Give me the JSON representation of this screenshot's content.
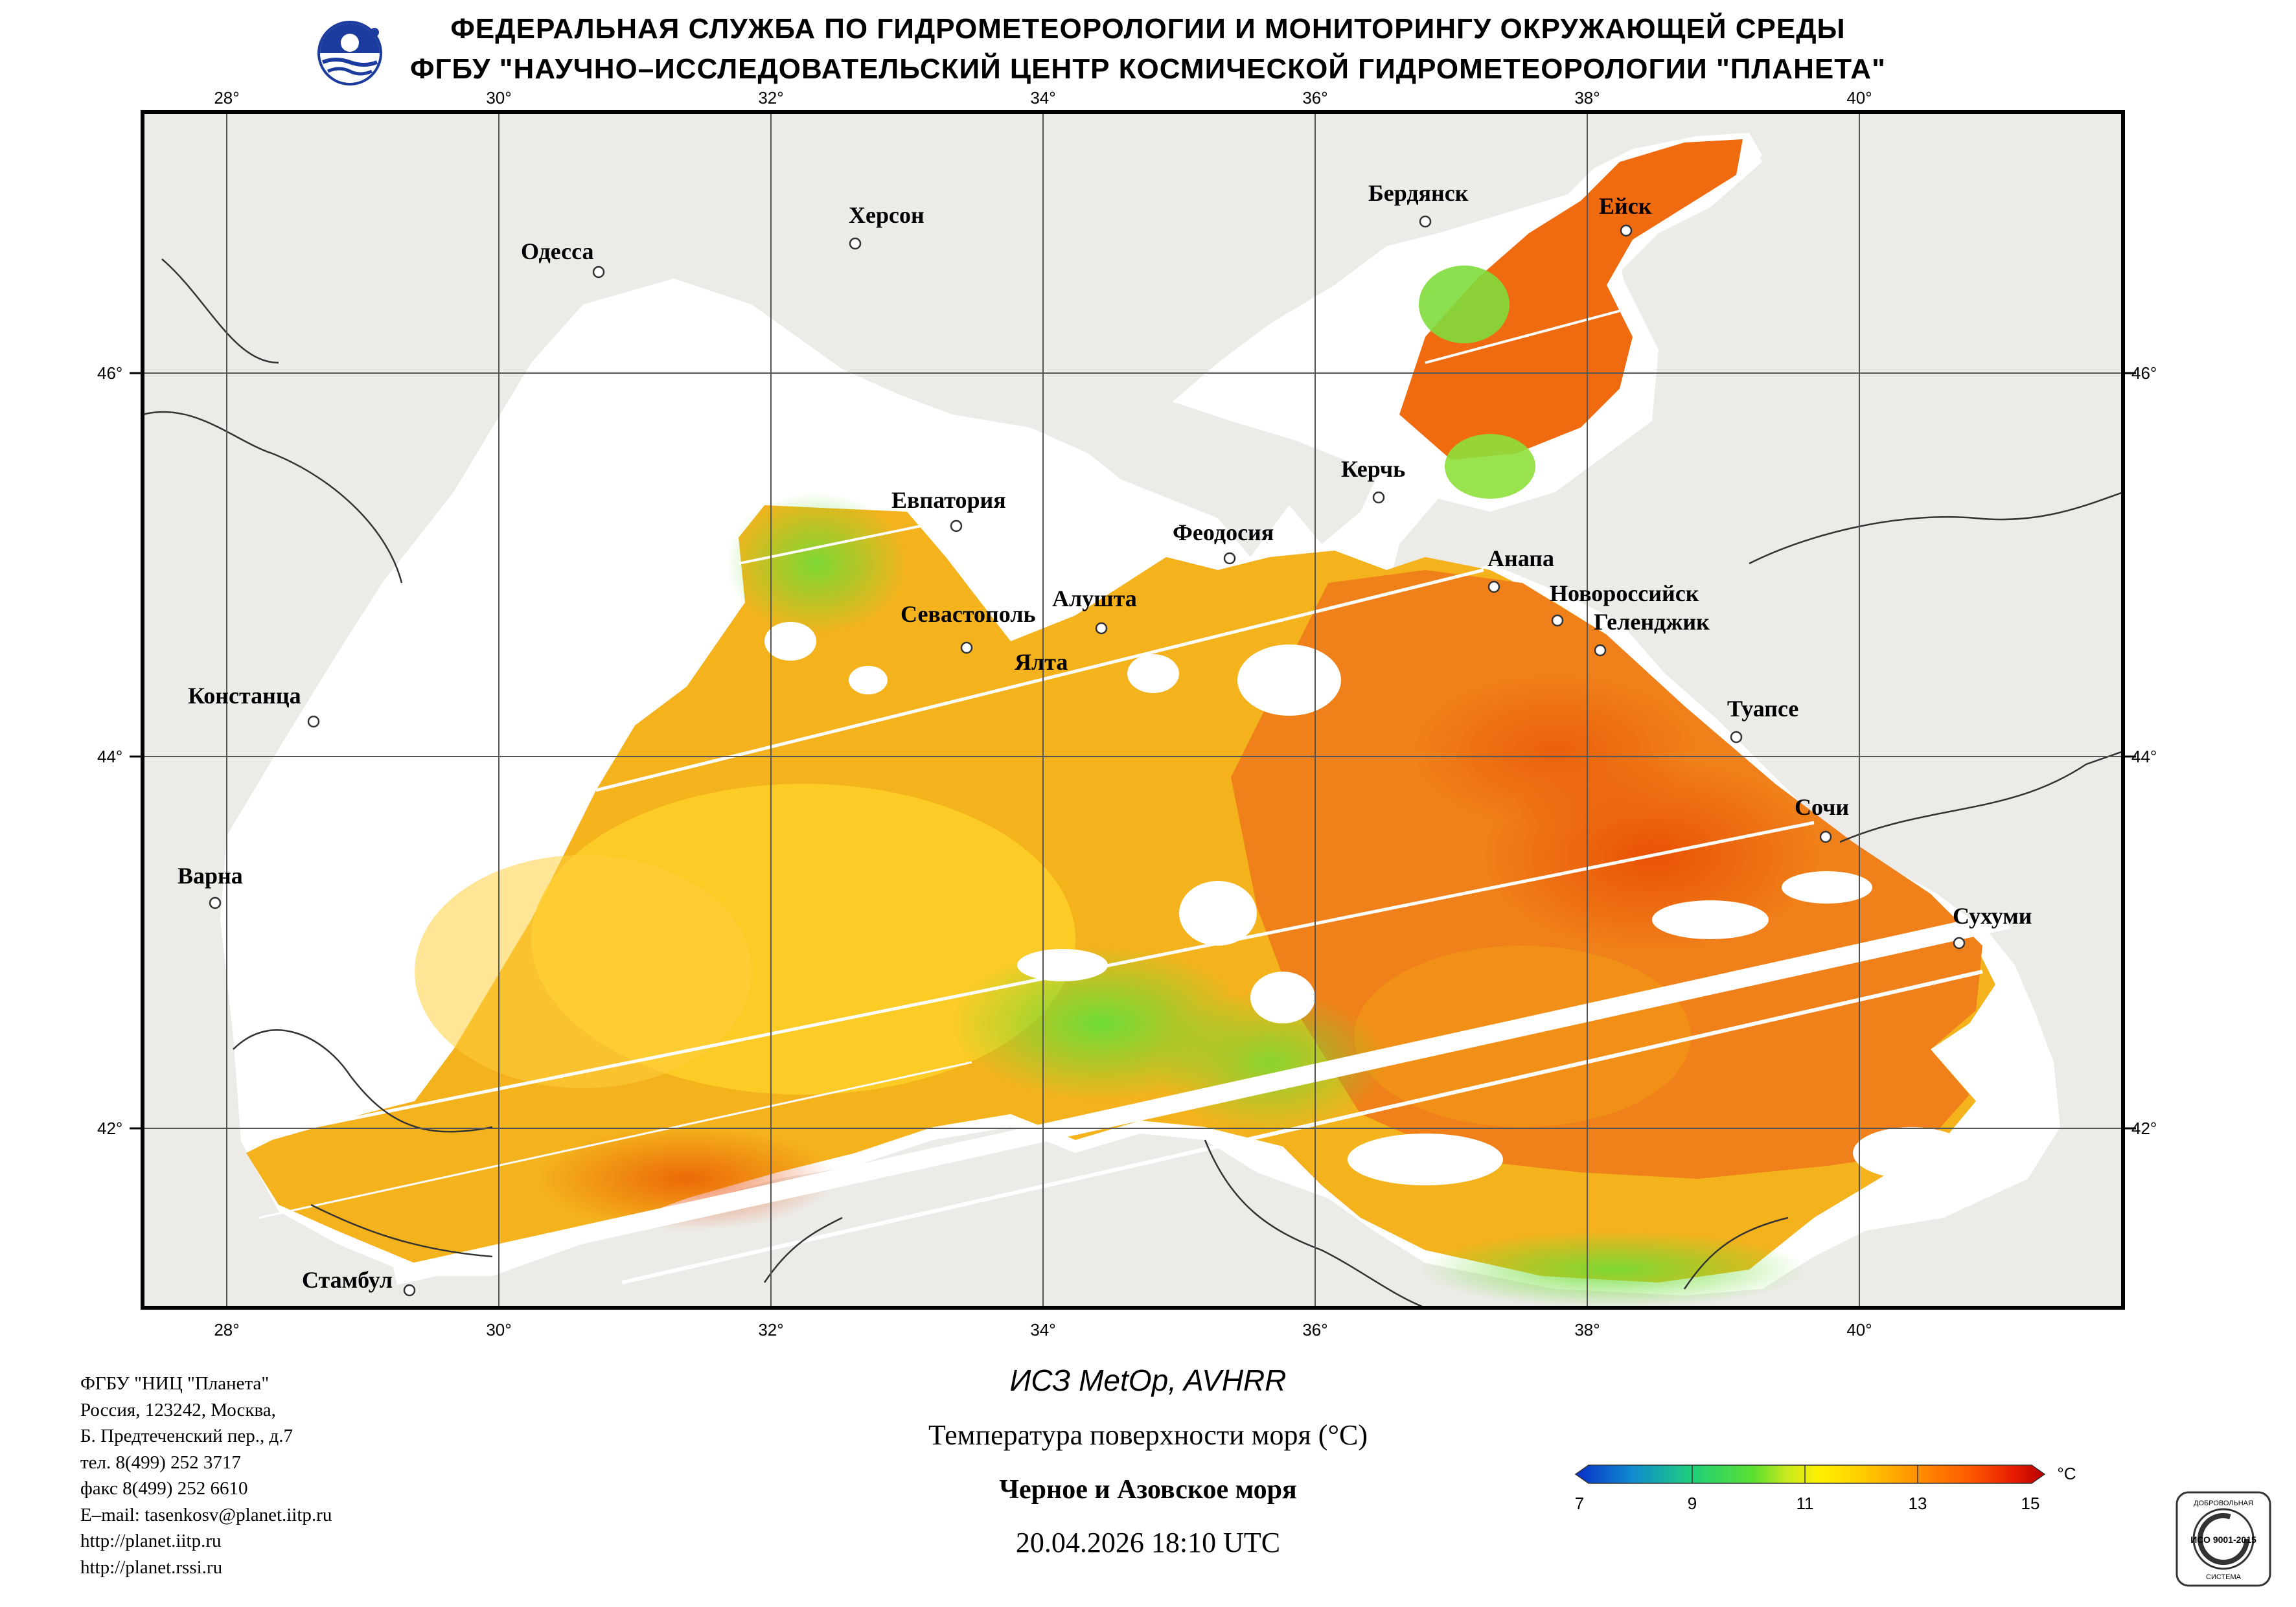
{
  "header": {
    "line1": "ФЕДЕРАЛЬНАЯ СЛУЖБА ПО ГИДРОМЕТЕОРОЛОГИИ И МОНИТОРИНГУ ОКРУЖАЮЩЕЙ СРЕДЫ",
    "line2": "ФГБУ \"НАУЧНО–ИССЛЕДОВАТЕЛЬСКИЙ ЦЕНТР КОСМИЧЕСКОЙ ГИДРОМЕТЕОРОЛОГИИ \"ПЛАНЕТА\""
  },
  "grid": {
    "lon_labels": [
      "28°",
      "30°",
      "32°",
      "34°",
      "36°",
      "38°",
      "40°"
    ],
    "lat_labels": [
      "46°",
      "44°",
      "42°"
    ]
  },
  "cities": [
    {
      "name": "Одесса"
    },
    {
      "name": "Херсон"
    },
    {
      "name": "Бердянск"
    },
    {
      "name": "Ейск"
    },
    {
      "name": "Евпатория"
    },
    {
      "name": "Керчь"
    },
    {
      "name": "Феодосия"
    },
    {
      "name": "Анапа"
    },
    {
      "name": "Новороссийск"
    },
    {
      "name": "Геленджик"
    },
    {
      "name": "Севастополь"
    },
    {
      "name": "Алушта"
    },
    {
      "name": "Ялта"
    },
    {
      "name": "Констанца"
    },
    {
      "name": "Туапсе"
    },
    {
      "name": "Сочи"
    },
    {
      "name": "Варна"
    },
    {
      "name": "Сухуми"
    },
    {
      "name": "Стамбул"
    }
  ],
  "address": {
    "org": "ФГБУ \"НИЦ \"Планета\"",
    "line1": "Россия, 123242, Москва,",
    "line2": "Б. Предтеченский пер., д.7",
    "phone": "тел. 8(499) 252 3717",
    "fax": "факс 8(499) 252 6610",
    "email": "E–mail: tasenkosv@planet.iitp.ru",
    "url1": "http://planet.iitp.ru",
    "url2": "http://planet.rssi.ru"
  },
  "product": {
    "satellite": "ИСЗ MetOp, AVHRR",
    "parameter": "Температура поверхности моря (°С)",
    "region": "Черное и Азовское моря",
    "datetime": "20.04.2026 18:10 UTC"
  },
  "colorbar": {
    "unit": "°C",
    "tick_labels": [
      "7",
      "9",
      "11",
      "13",
      "15"
    ],
    "min": 7,
    "max": 15,
    "colors": [
      "#0a2fc8",
      "#0f8ad0",
      "#1fd07a",
      "#5be030",
      "#c8ea20",
      "#fff000",
      "#ffc800",
      "#ff9400",
      "#ff5a00",
      "#e81e00",
      "#b80000"
    ]
  },
  "colors": {
    "land": "#ecebe8",
    "no_data": "#ffffff",
    "sea_cold": "#5dd93a",
    "sea_mid": "#f2c21a",
    "sea_warm": "#f58a10",
    "sea_hot": "#e84a00",
    "grid": "#555555",
    "coast": "#2a2a2a",
    "frame": "#000000"
  },
  "logo": {
    "name": "planeta-logo"
  },
  "certification": {
    "text": "ИСО 9001-2015",
    "top_text": "ДОБРОВОЛЬНАЯ",
    "bottom_text": "СИСТЕМА"
  }
}
